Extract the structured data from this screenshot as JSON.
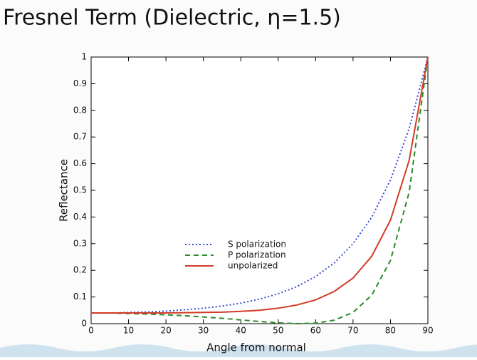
{
  "chart_data": {
    "type": "line",
    "title": "Fresnel Term (Dielectric, η=1.5)",
    "x_label": "Angle from normal",
    "y_label": "Reflectance",
    "x": [
      0,
      5,
      10,
      15,
      20,
      25,
      30,
      35,
      40,
      45,
      50,
      55,
      60,
      65,
      70,
      75,
      80,
      85,
      90
    ],
    "series": [
      {
        "name": "S polarization",
        "color": "#3a4bd0",
        "style": "dotted",
        "values": [
          0.04,
          0.04,
          0.042,
          0.044,
          0.047,
          0.052,
          0.058,
          0.066,
          0.077,
          0.092,
          0.112,
          0.139,
          0.177,
          0.228,
          0.3,
          0.399,
          0.539,
          0.732,
          1
        ]
      },
      {
        "name": "P polarization",
        "color": "#2a8a2a",
        "style": "dashed",
        "values": [
          0.04,
          0.04,
          0.038,
          0.036,
          0.033,
          0.03,
          0.025,
          0.02,
          0.014,
          0.008,
          0.003,
          0.0,
          0.002,
          0.013,
          0.042,
          0.107,
          0.237,
          0.493,
          1
        ]
      },
      {
        "name": "unpolarized",
        "color": "#d33a26",
        "style": "solid",
        "values": [
          0.04,
          0.04,
          0.04,
          0.04,
          0.04,
          0.041,
          0.042,
          0.043,
          0.046,
          0.05,
          0.058,
          0.07,
          0.089,
          0.121,
          0.171,
          0.253,
          0.388,
          0.613,
          1
        ]
      }
    ],
    "xlim": [
      0,
      90
    ],
    "xticks": [
      0,
      10,
      20,
      30,
      40,
      50,
      60,
      70,
      80,
      90
    ],
    "ylim": [
      0,
      1
    ],
    "yticks": [
      0,
      0.1,
      0.2,
      0.3,
      0.4,
      0.5,
      0.6,
      0.7,
      0.8,
      0.9,
      1
    ],
    "grid": false
  }
}
